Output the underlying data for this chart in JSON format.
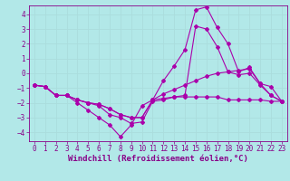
{
  "background_color": "#b2e8e8",
  "line_color": "#aa00aa",
  "grid_color": "#aadddd",
  "xlabel": "Windchill (Refroidissement éolien,°C)",
  "xlim": [
    -0.5,
    23.5
  ],
  "ylim": [
    -4.6,
    4.6
  ],
  "xticks": [
    0,
    1,
    2,
    3,
    4,
    5,
    6,
    7,
    8,
    9,
    10,
    11,
    12,
    13,
    14,
    15,
    16,
    17,
    18,
    19,
    20,
    21,
    22,
    23
  ],
  "yticks": [
    -4,
    -3,
    -2,
    -1,
    0,
    1,
    2,
    3,
    4
  ],
  "lines": [
    {
      "x": [
        0,
        1,
        2,
        3,
        4,
        5,
        6,
        7,
        8,
        9,
        10,
        11,
        12,
        13,
        14,
        15,
        16,
        17,
        18,
        19,
        20,
        21,
        22,
        23
      ],
      "y": [
        -0.8,
        -0.9,
        -1.5,
        -1.5,
        -2.0,
        -2.5,
        -3.0,
        -3.5,
        -4.3,
        -3.5,
        -2.2,
        -1.8,
        -0.5,
        0.5,
        1.6,
        4.3,
        4.5,
        3.1,
        2.0,
        0.1,
        0.4,
        -0.7,
        -0.9,
        -1.9
      ]
    },
    {
      "x": [
        0,
        1,
        2,
        3,
        4,
        5,
        6,
        7,
        8,
        9,
        10,
        11,
        12,
        13,
        14,
        15,
        16,
        17,
        18,
        19,
        20,
        21,
        22,
        23
      ],
      "y": [
        -0.8,
        -0.9,
        -1.5,
        -1.5,
        -1.8,
        -2.0,
        -2.2,
        -2.8,
        -3.0,
        -3.4,
        -3.3,
        -1.9,
        -1.8,
        -1.6,
        -1.5,
        3.2,
        3.0,
        1.8,
        0.1,
        -0.1,
        0.0,
        -0.8,
        -1.5,
        -1.9
      ]
    },
    {
      "x": [
        0,
        1,
        2,
        3,
        4,
        5,
        6,
        7,
        8,
        9,
        10,
        11,
        12,
        13,
        14,
        15,
        16,
        17,
        18,
        19,
        20,
        21,
        22,
        23
      ],
      "y": [
        -0.8,
        -0.9,
        -1.5,
        -1.5,
        -1.8,
        -2.0,
        -2.1,
        -2.4,
        -2.8,
        -3.0,
        -3.0,
        -1.8,
        -1.7,
        -1.6,
        -1.6,
        -1.6,
        -1.6,
        -1.6,
        -1.8,
        -1.8,
        -1.8,
        -1.8,
        -1.9,
        -1.9
      ]
    },
    {
      "x": [
        0,
        1,
        2,
        3,
        4,
        5,
        6,
        7,
        8,
        9,
        10,
        11,
        12,
        13,
        14,
        15,
        16,
        17,
        18,
        19,
        20,
        21,
        22,
        23
      ],
      "y": [
        -0.8,
        -0.9,
        -1.5,
        -1.5,
        -1.8,
        -2.0,
        -2.1,
        -2.4,
        -2.8,
        -3.0,
        -3.0,
        -1.8,
        -1.4,
        -1.1,
        -0.8,
        -0.5,
        -0.2,
        0.0,
        0.1,
        0.2,
        0.3,
        -0.7,
        -1.5,
        -1.9
      ]
    }
  ],
  "font_color": "#880088",
  "tick_fontsize": 5.5,
  "label_fontsize": 6.5,
  "marker_size": 2.0,
  "line_width": 0.8
}
